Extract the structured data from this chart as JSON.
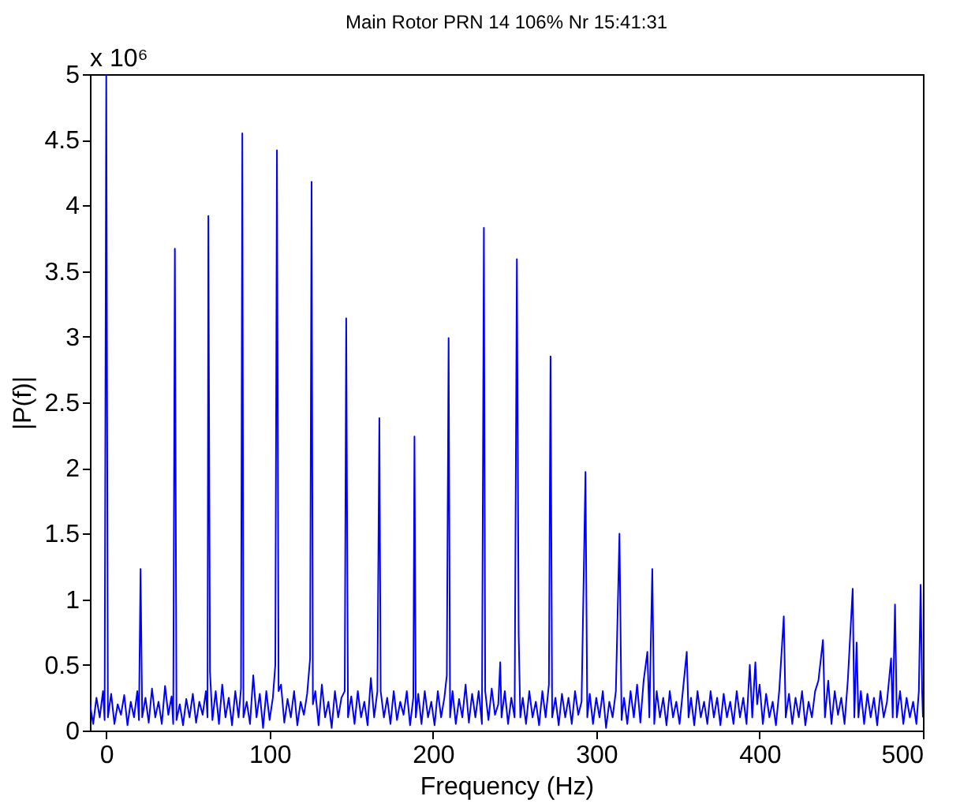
{
  "chart_data": {
    "type": "line",
    "title": "Main Rotor  PRN 14   106% Nr  15:41:31",
    "xlabel": "Frequency (Hz)",
    "ylabel": "|P(f)|",
    "annotations": [
      "x 10⁶"
    ],
    "xlim": [
      -10,
      500
    ],
    "xticks": [
      0,
      100,
      200,
      300,
      400,
      500
    ],
    "ylim": [
      0,
      5
    ],
    "yticks": [
      0,
      0.5,
      1,
      1.5,
      2,
      2.5,
      3,
      3.5,
      4,
      4.5,
      5
    ],
    "grid": false,
    "marker": "none",
    "line_style": "solid",
    "series": [
      {
        "color": "#0000ff",
        "x": [
          -10,
          -8,
          -6,
          -4,
          -2,
          -1,
          0,
          1,
          3,
          5,
          7,
          9,
          11,
          13,
          15,
          17,
          19,
          20,
          21,
          22,
          24,
          26,
          28,
          30,
          32,
          34,
          36,
          38,
          40,
          41,
          42,
          43,
          45,
          47,
          49,
          51,
          53,
          55,
          57,
          59,
          61,
          62,
          62.5,
          63.5,
          65,
          67,
          69,
          71,
          73,
          75,
          77,
          79,
          81,
          82.5,
          83.3,
          84,
          86,
          88,
          90,
          92,
          94,
          96,
          98,
          100,
          102,
          103.5,
          104.5,
          105.5,
          107,
          109,
          111,
          113,
          115,
          117,
          119,
          121,
          123,
          124.8,
          125.7,
          126.5,
          128,
          130,
          132,
          134,
          136,
          138,
          140,
          142,
          144,
          146,
          146.9,
          148,
          150,
          152,
          154,
          156,
          158,
          160,
          162,
          164,
          166,
          167.2,
          168,
          170,
          172,
          174,
          176,
          178,
          180,
          182,
          184,
          186,
          188,
          188.7,
          189.5,
          191,
          193,
          195,
          197,
          199,
          201,
          203,
          205,
          207,
          208.5,
          209.6,
          210.5,
          212,
          214,
          216,
          218,
          220,
          222,
          224,
          226,
          228,
          230,
          231.2,
          232,
          234,
          236,
          238,
          240,
          241.2,
          242,
          244,
          246,
          248,
          250,
          251.4,
          252.5,
          253.5,
          255,
          257,
          259,
          261,
          263,
          265,
          267,
          269,
          271,
          272,
          273,
          275,
          277,
          279,
          281,
          283,
          285,
          287,
          289,
          291,
          293.4,
          294.5,
          296,
          298,
          300,
          302,
          304,
          306,
          308,
          310,
          312,
          314.2,
          315.5,
          317,
          319,
          321,
          323,
          325,
          327,
          329,
          331.3,
          332.5,
          334.3,
          335.5,
          337,
          339,
          341,
          343,
          345,
          347,
          349,
          351,
          353,
          355.4,
          356.5,
          358,
          360,
          362,
          364,
          366,
          368,
          370,
          372,
          374,
          376,
          378,
          380,
          382,
          384,
          386,
          388,
          390,
          392,
          394,
          395.5,
          397.4,
          398.5,
          400,
          402,
          404,
          406,
          408,
          410,
          412,
          414.8,
          416,
          418,
          420,
          422,
          424,
          426,
          428,
          430,
          432,
          434,
          436,
          438.8,
          440,
          442,
          444,
          446,
          448,
          450,
          452,
          454,
          457,
          458,
          459.4,
          460.5,
          462,
          464,
          466,
          468,
          470,
          472,
          474,
          476,
          478,
          480.5,
          481.5,
          482.9,
          484,
          486,
          488,
          490,
          492,
          494,
          496,
          497.5,
          498.6,
          499.5,
          500
        ],
        "values": [
          0.2,
          0.05,
          0.25,
          0.1,
          0.3,
          0.08,
          5,
          0.1,
          0.28,
          0.05,
          0.2,
          0.12,
          0.27,
          0.04,
          0.22,
          0.1,
          0.3,
          0.08,
          1.23,
          0.1,
          0.25,
          0.06,
          0.32,
          0.1,
          0.22,
          0.05,
          0.34,
          0.12,
          0.26,
          0.05,
          3.67,
          0.08,
          0.2,
          0.04,
          0.24,
          0.1,
          0.28,
          0.06,
          0.22,
          0.12,
          0.3,
          0.1,
          3.92,
          0.45,
          0.08,
          0.3,
          0.05,
          0.35,
          0.1,
          0.25,
          0.04,
          0.3,
          0.1,
          0.32,
          4.55,
          0.1,
          0.22,
          0.05,
          0.42,
          0.1,
          0.28,
          0.02,
          0.3,
          0.08,
          0.25,
          0.5,
          4.42,
          0.3,
          0.35,
          0.06,
          0.24,
          0.1,
          0.3,
          0.04,
          0.22,
          0.12,
          0.28,
          0.55,
          4.18,
          0.2,
          0.3,
          0.04,
          0.35,
          0.1,
          0.22,
          0.02,
          0.3,
          0.1,
          0.25,
          0.3,
          3.14,
          0.1,
          0.26,
          0.05,
          0.3,
          0.1,
          0.22,
          0.04,
          0.4,
          0.1,
          0.3,
          2.38,
          0.3,
          0.1,
          0.25,
          0.05,
          0.3,
          0.08,
          0.22,
          0.12,
          0.3,
          0.04,
          0.25,
          2.24,
          0.1,
          0.28,
          0.05,
          0.3,
          0.1,
          0.22,
          0.04,
          0.3,
          0.1,
          0.25,
          0.42,
          2.99,
          0.1,
          0.3,
          0.05,
          0.24,
          0.1,
          0.35,
          0.06,
          0.28,
          0.1,
          0.3,
          0.05,
          3.83,
          0.3,
          0.08,
          0.32,
          0.12,
          0.2,
          0.52,
          0.1,
          0.3,
          0.05,
          0.25,
          0.1,
          3.59,
          0.73,
          0.1,
          0.25,
          0.05,
          0.3,
          0.1,
          0.22,
          0.04,
          0.3,
          0.1,
          0.35,
          2.85,
          0.1,
          0.25,
          0.04,
          0.28,
          0.1,
          0.25,
          0.05,
          0.3,
          0.12,
          0.22,
          1.97,
          0.1,
          0.28,
          0.05,
          0.25,
          0.1,
          0.3,
          0.02,
          0.22,
          0.1,
          0.3,
          1.5,
          0.08,
          0.25,
          0.05,
          0.3,
          0.1,
          0.35,
          0.06,
          0.38,
          0.6,
          0.1,
          1.23,
          0.05,
          0.3,
          0.1,
          0.25,
          0.04,
          0.3,
          0.1,
          0.22,
          0.05,
          0.3,
          0.6,
          0.1,
          0.25,
          0.04,
          0.3,
          0.1,
          0.22,
          0.05,
          0.3,
          0.1,
          0.25,
          0.04,
          0.28,
          0.1,
          0.22,
          0.05,
          0.3,
          0.1,
          0.25,
          0.05,
          0.5,
          0.1,
          0.52,
          0.2,
          0.35,
          0.05,
          0.28,
          0.1,
          0.22,
          0.04,
          0.3,
          0.87,
          0.1,
          0.28,
          0.05,
          0.25,
          0.1,
          0.3,
          0.04,
          0.22,
          0.1,
          0.3,
          0.38,
          0.69,
          0.1,
          0.38,
          0.05,
          0.3,
          0.12,
          0.25,
          0.05,
          0.38,
          1.08,
          0.1,
          0.67,
          0.1,
          0.3,
          0.05,
          0.28,
          0.1,
          0.25,
          0.04,
          0.3,
          0.1,
          0.22,
          0.55,
          0.1,
          0.96,
          0.1,
          0.3,
          0.05,
          0.25,
          0.1,
          0.22,
          0.05,
          0.3,
          1.11,
          0.3,
          0.1
        ]
      }
    ]
  }
}
